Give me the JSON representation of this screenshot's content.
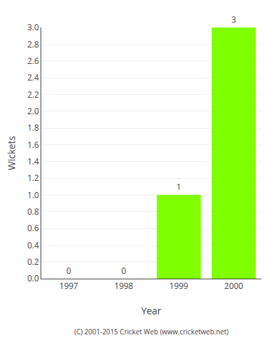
{
  "chart_data": {
    "type": "bar",
    "categories": [
      "1997",
      "1998",
      "1999",
      "2000"
    ],
    "values": [
      0,
      0,
      1,
      3
    ],
    "color": "#7FFF00",
    "xlabel": "Year",
    "ylabel": "Wickets",
    "ylim": [
      0,
      3.0
    ],
    "yticks": [
      {
        "value": 0.0,
        "label": "0.0"
      },
      0.2,
      0.4,
      0.6,
      0.8,
      {
        "value": 1.0,
        "label": "1.0"
      },
      1.2,
      1.4,
      1.6,
      1.8,
      {
        "value": 2.0,
        "label": "2.0"
      },
      2.2,
      2.4,
      2.6,
      2.8,
      {
        "value": 3.0,
        "label": "3.0"
      }
    ],
    "grid": true,
    "data_labels": true,
    "footer": "(C) 2001-2015 Cricket Web (www.cricketweb.net)"
  }
}
